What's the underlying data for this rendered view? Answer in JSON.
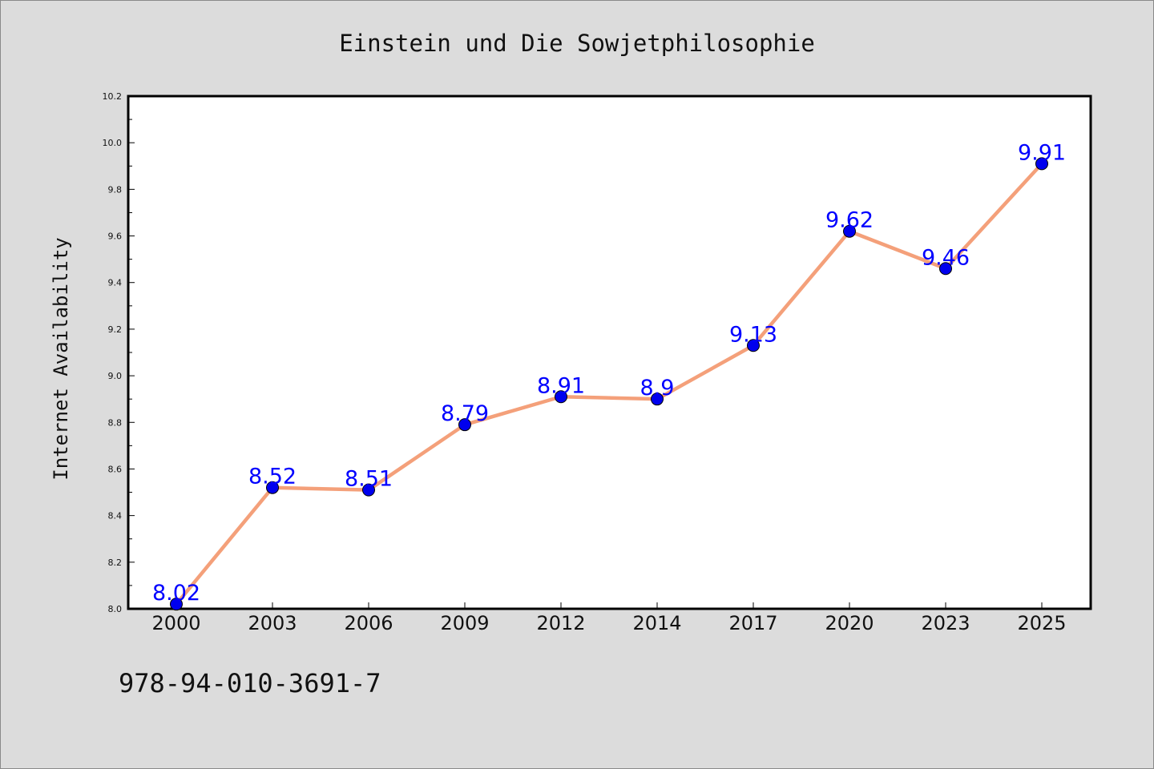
{
  "chart_data": {
    "type": "line",
    "title": "Einstein und Die Sowjetphilosophie",
    "xlabel": "",
    "ylabel": "Internet Availability",
    "categories": [
      "2000",
      "2003",
      "2006",
      "2009",
      "2012",
      "2014",
      "2017",
      "2020",
      "2023",
      "2025"
    ],
    "values": [
      8.02,
      8.52,
      8.51,
      8.79,
      8.91,
      8.9,
      9.13,
      9.62,
      9.46,
      9.91
    ],
    "data_labels": [
      "8.02",
      "8.52",
      "8.51",
      "8.79",
      "8.91",
      "8.9",
      "9.13",
      "9.62",
      "9.46",
      "9.91"
    ],
    "ylim": [
      8.0,
      10.2
    ],
    "yticks": [
      "8.0",
      "8.2",
      "8.4",
      "8.6",
      "8.8",
      "9.0",
      "9.2",
      "9.4",
      "9.6",
      "9.8",
      "10.0",
      "10.2"
    ],
    "grid": false,
    "legend": "none",
    "line_color": "#f4a07a",
    "marker_color": "#0000ee",
    "label_color": "#0000ff"
  },
  "footer": {
    "isbn": "978-94-010-3691-7"
  }
}
